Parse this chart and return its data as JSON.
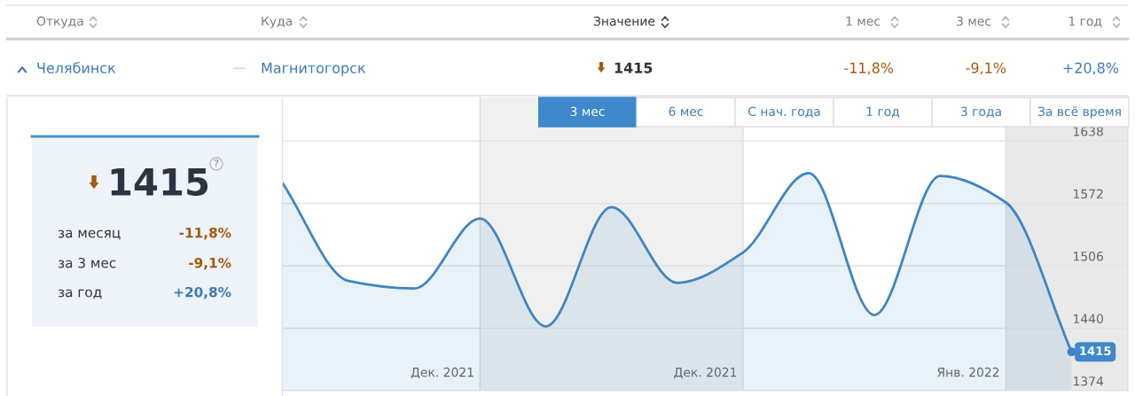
{
  "chart_data": [
    {
      "type": "other",
      "annotations": [
        "Откуда",
        "Куда",
        "Значение",
        "1 мес",
        "3 мес",
        "1 год",
        "Челябинск",
        "—",
        "Магнитогорск",
        "1415",
        "-11,8%",
        "-9,1%",
        "+20,8%"
      ]
    },
    {
      "type": "other",
      "annotations": [
        "1415",
        "?",
        "за месяц",
        "-11,8%",
        "за 3 мес",
        "-9,1%",
        "за год",
        "+20,8%"
      ]
    },
    {
      "type": "other",
      "annotations": [
        "3 мес",
        "6 мес",
        "С нач. года",
        "1 год",
        "3 года",
        "За всё время"
      ]
    },
    {
      "type": "area",
      "x": [
        "2021-11-16",
        "2021-11-23",
        "2021-11-30",
        "2021-12-07",
        "2021-12-14",
        "2021-12-21",
        "2021-12-28",
        "2022-01-04",
        "2022-01-11",
        "2022-01-18",
        "2022-01-25",
        "2022-02-01",
        "2022-02-08"
      ],
      "values": [
        1593,
        1490,
        1482,
        1556,
        1442,
        1568,
        1488,
        1520,
        1604,
        1454,
        1601,
        1573,
        1415
      ],
      "color": "#3d85c6",
      "value_labels": [
        null,
        null,
        null,
        null,
        null,
        null,
        null,
        null,
        null,
        null,
        null,
        null,
        "1415"
      ],
      "xlim": [
        "2021-11-16",
        "2022-02-14"
      ],
      "ylim": [
        1374,
        1684
      ],
      "yticks": [
        1374,
        1440,
        1506,
        1572,
        1638
      ],
      "xticks": [
        {
          "value": "2021-12-03",
          "label": "Дек. 2021"
        },
        {
          "value": "2021-12-31",
          "label": "Дек. 2021"
        },
        {
          "value": "2022-01-28",
          "label": "Янв. 2022"
        }
      ],
      "grid": "y",
      "bands": [
        {
          "axis": "x",
          "from": "2021-12-07",
          "to": "2022-01-04",
          "color": "#f0f0f0"
        },
        {
          "axis": "x",
          "from": "2022-02-01",
          "to": "2022-02-14",
          "color": "#e9e9e9"
        }
      ]
    }
  ]
}
